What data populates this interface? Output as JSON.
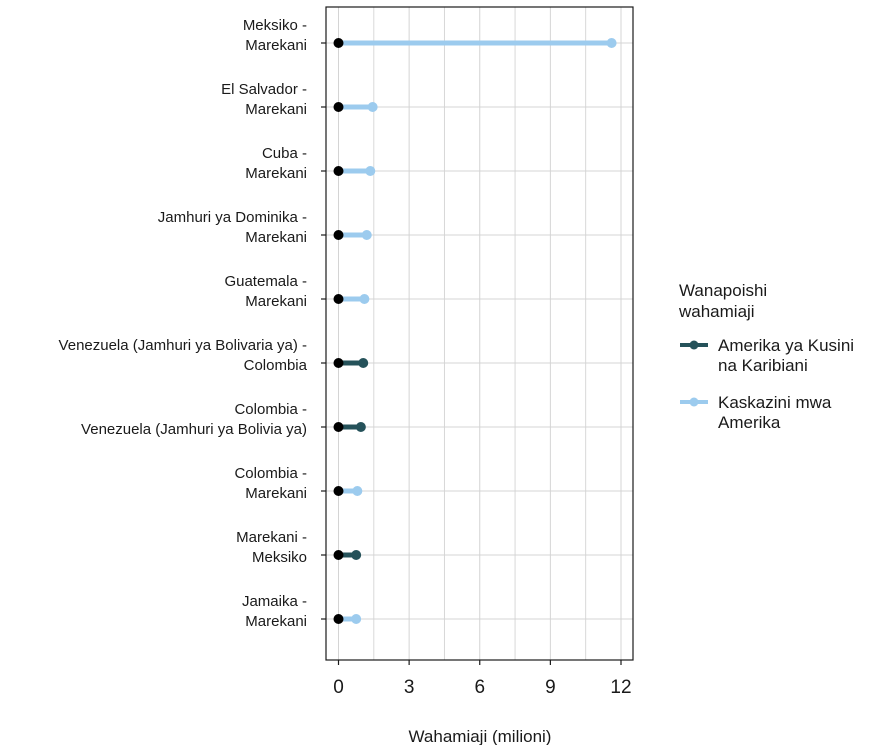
{
  "chart_data": {
    "type": "dumbbell",
    "xlabel": "Wahamiaji (milioni)",
    "xlim": [
      -0.5,
      12.5
    ],
    "xticks": [
      0,
      3,
      6,
      9,
      12
    ],
    "grid": true,
    "legend": {
      "title_lines": [
        "Wanapoishi",
        "wahamiaji"
      ],
      "placement": "right",
      "entries": [
        {
          "key": "latam",
          "label_lines": [
            "Amerika ya Kusini",
            "na Karibiani"
          ],
          "color": "#25525a"
        },
        {
          "key": "nam",
          "label_lines": [
            "Kaskazini mwa",
            "Amerika"
          ],
          "color": "#9ccbee"
        }
      ]
    },
    "start_point_color": "#000000",
    "corridors": [
      {
        "label_lines": [
          "Meksiko -",
          "Marekani"
        ],
        "start": 0,
        "value": 11.6,
        "region": "nam"
      },
      {
        "label_lines": [
          "El Salvador -",
          "Marekani"
        ],
        "start": 0,
        "value": 1.45,
        "region": "nam"
      },
      {
        "label_lines": [
          "Cuba -",
          "Marekani"
        ],
        "start": 0,
        "value": 1.35,
        "region": "nam"
      },
      {
        "label_lines": [
          "Jamhuri ya Dominika -",
          "Marekani"
        ],
        "start": 0,
        "value": 1.2,
        "region": "nam"
      },
      {
        "label_lines": [
          "Guatemala -",
          "Marekani"
        ],
        "start": 0,
        "value": 1.1,
        "region": "nam"
      },
      {
        "label_lines": [
          "Venezuela (Jamhuri ya Bolivaria ya) -",
          "Colombia"
        ],
        "start": 0,
        "value": 1.05,
        "region": "latam"
      },
      {
        "label_lines": [
          "Colombia -",
          "Venezuela (Jamhuri ya Bolivia ya)"
        ],
        "start": 0,
        "value": 0.95,
        "region": "latam"
      },
      {
        "label_lines": [
          "Colombia -",
          "Marekani"
        ],
        "start": 0,
        "value": 0.8,
        "region": "nam"
      },
      {
        "label_lines": [
          "Marekani -",
          "Meksiko"
        ],
        "start": 0,
        "value": 0.75,
        "region": "latam"
      },
      {
        "label_lines": [
          "Jamaika -",
          "Marekani"
        ],
        "start": 0,
        "value": 0.75,
        "region": "nam"
      }
    ]
  }
}
